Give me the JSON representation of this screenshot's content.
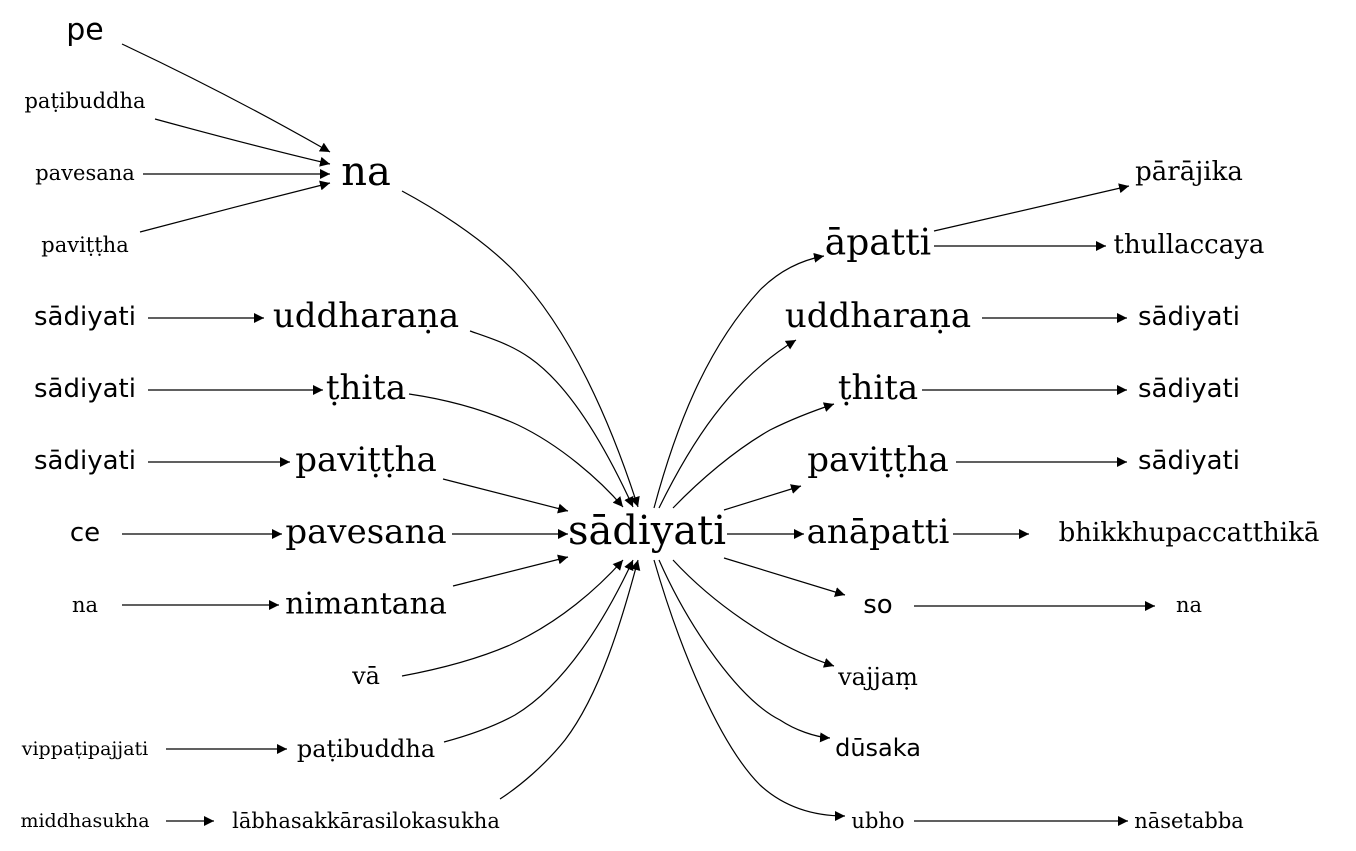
{
  "nodes": {
    "pe_l": "pe",
    "patibuddha_l": "paṭibuddha",
    "pavesana_l": "pavesana",
    "pavittha_l": "paviṭṭha",
    "sadiyati_l1": "sādiyati",
    "sadiyati_l2": "sādiyati",
    "sadiyati_l3": "sādiyati",
    "ce_l": "ce",
    "na_l": "na",
    "vippatipajjati_l": "vippaṭipajjati",
    "middhasukha_l": "middhasukha",
    "na_m": "na",
    "uddharana_m": "uddharaṇa",
    "thita_m": "ṭhita",
    "pavittha_m": "paviṭṭha",
    "pavesana_m": "pavesana",
    "nimantana_m": "nimantana",
    "va_m": "vā",
    "patibuddha_m": "paṭibuddha",
    "labhasakkara_m": "lābhasakkārasilokasukha",
    "sadiyati_c": "sādiyati",
    "apatti_r": "āpatti",
    "uddharana_r": "uddharaṇa",
    "thita_r": "ṭhita",
    "pavittha_r": "paviṭṭha",
    "anapatti_r": "anāpatti",
    "so_r": "so",
    "vajjam_r": "vajjaṃ",
    "dusaka_r": "dūsaka",
    "ubho_r": "ubho",
    "parajika_rr": "pārājika",
    "thullaccaya_rr": "thullaccaya",
    "sadiyati_rr1": "sādiyati",
    "sadiyati_rr2": "sādiyati",
    "sadiyati_rr3": "sādiyati",
    "bhikkhu_rr": "bhikkhupaccatthikā",
    "na_rr": "na",
    "nasetabba_rr": "nāsetabba"
  },
  "edges": [
    [
      "pe_l",
      "na_m"
    ],
    [
      "patibuddha_l",
      "na_m"
    ],
    [
      "pavesana_l",
      "na_m"
    ],
    [
      "pavittha_l",
      "na_m"
    ],
    [
      "sadiyati_l1",
      "uddharana_m"
    ],
    [
      "sadiyati_l2",
      "thita_m"
    ],
    [
      "sadiyati_l3",
      "pavittha_m"
    ],
    [
      "ce_l",
      "pavesana_m"
    ],
    [
      "na_l",
      "nimantana_m"
    ],
    [
      "vippatipajjati_l",
      "patibuddha_m"
    ],
    [
      "middhasukha_l",
      "labhasakkara_m"
    ],
    [
      "na_m",
      "sadiyati_c"
    ],
    [
      "uddharana_m",
      "sadiyati_c"
    ],
    [
      "thita_m",
      "sadiyati_c"
    ],
    [
      "pavittha_m",
      "sadiyati_c"
    ],
    [
      "pavesana_m",
      "sadiyati_c"
    ],
    [
      "nimantana_m",
      "sadiyati_c"
    ],
    [
      "va_m",
      "sadiyati_c"
    ],
    [
      "patibuddha_m",
      "sadiyati_c"
    ],
    [
      "labhasakkara_m",
      "sadiyati_c"
    ],
    [
      "sadiyati_c",
      "apatti_r"
    ],
    [
      "sadiyati_c",
      "uddharana_r"
    ],
    [
      "sadiyati_c",
      "thita_r"
    ],
    [
      "sadiyati_c",
      "pavittha_r"
    ],
    [
      "sadiyati_c",
      "anapatti_r"
    ],
    [
      "sadiyati_c",
      "so_r"
    ],
    [
      "sadiyati_c",
      "vajjam_r"
    ],
    [
      "sadiyati_c",
      "dusaka_r"
    ],
    [
      "sadiyati_c",
      "ubho_r"
    ],
    [
      "apatti_r",
      "parajika_rr"
    ],
    [
      "apatti_r",
      "thullaccaya_rr"
    ],
    [
      "uddharana_r",
      "sadiyati_rr1"
    ],
    [
      "thita_r",
      "sadiyati_rr2"
    ],
    [
      "pavittha_r",
      "sadiyati_rr3"
    ],
    [
      "anapatti_r",
      "bhikkhu_rr"
    ],
    [
      "so_r",
      "na_rr"
    ],
    [
      "ubho_r",
      "nasetabba_rr"
    ]
  ]
}
